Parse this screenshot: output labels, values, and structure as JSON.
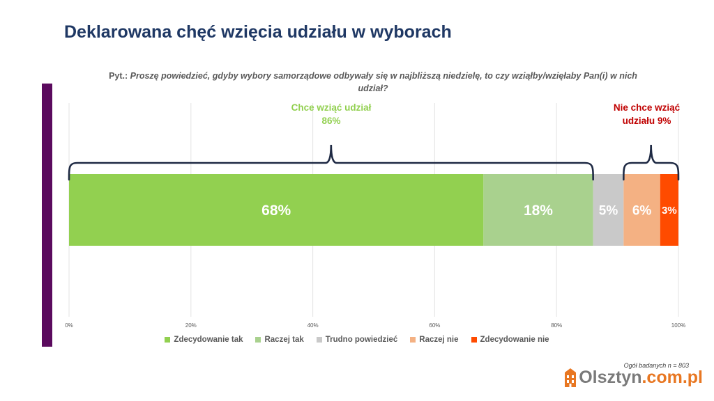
{
  "title": "Deklarowana chęć wzięcia udziału w wyborach",
  "question": {
    "label": "Pyt.:",
    "text": "Proszę powiedzieć, gdyby wybory samorządowe odbywały się w najbliższą niedzielę, to czy wziąłby/wzięłaby Pan(i) w nich udział?"
  },
  "chart_data": {
    "type": "bar",
    "orientation": "horizontal",
    "stacked": true,
    "xlim": [
      0,
      100
    ],
    "x_ticks": [
      0,
      20,
      40,
      60,
      80,
      100
    ],
    "x_tick_labels": [
      "0%",
      "20%",
      "40%",
      "60%",
      "80%",
      "100%"
    ],
    "grid": true,
    "legend_position": "bottom",
    "series": [
      {
        "name": "Zdecydowanie tak",
        "value": 68,
        "label": "68%",
        "color": "#92d050"
      },
      {
        "name": "Raczej tak",
        "value": 18,
        "label": "18%",
        "color": "#a9d18e"
      },
      {
        "name": "Trudno powiedzieć",
        "value": 5,
        "label": "5%",
        "color": "#c9c9c9"
      },
      {
        "name": "Raczej nie",
        "value": 6,
        "label": "6%",
        "color": "#f4b183"
      },
      {
        "name": "Zdecydowanie nie",
        "value": 3,
        "label": "3%",
        "color": "#ff4b00"
      }
    ],
    "annotations": [
      {
        "line1": "Chce wziąć udział",
        "line2": "86%",
        "color": "#92d050",
        "from": 0,
        "to": 86
      },
      {
        "line1": "Nie chce wziąć",
        "line2": "udziału 9%",
        "color": "#c00000",
        "from": 91,
        "to": 100
      }
    ]
  },
  "footnote": "Ogół badanych n = 803",
  "logo": {
    "part1": "Olsztyn",
    "part2": ".com.pl"
  },
  "colors": {
    "title": "#1f3864",
    "accent_bar": "#5b0a5e",
    "brace": "#1f2a44"
  }
}
